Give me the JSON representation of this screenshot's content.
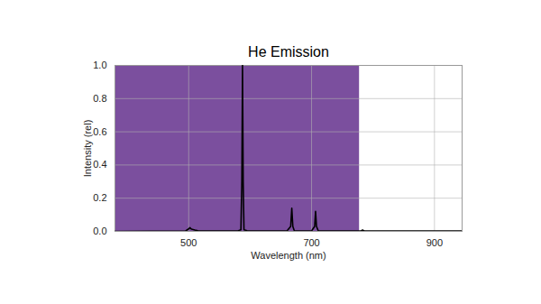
{
  "chart_data": {
    "type": "line",
    "title": "He Emission",
    "x_label": "Wavelength (nm)",
    "y_label": "Intensity (rel)",
    "xlim": [
      380,
      945
    ],
    "ylim": [
      0,
      1
    ],
    "xticks": [
      500,
      700,
      900
    ],
    "yticks": [
      {
        "value": 0,
        "label": "0.0"
      },
      {
        "value": 0.2,
        "label": "0.2"
      },
      {
        "value": 0.4,
        "label": "0.4"
      },
      {
        "value": 0.6,
        "label": "0.6"
      },
      {
        "value": 0.8,
        "label": "0.8"
      },
      {
        "value": 1,
        "label": "1.0"
      }
    ],
    "grid": true,
    "color": "#000000",
    "x": [
      380,
      495,
      500,
      502,
      504,
      506,
      510,
      515,
      520,
      580,
      585,
      586.5,
      587.6,
      588.7,
      590,
      595,
      660,
      666,
      667.8,
      669.5,
      672,
      700,
      705,
      706.5,
      708,
      711,
      780,
      783,
      786,
      945
    ],
    "values": [
      0,
      0.003,
      0.015,
      0.022,
      0.015,
      0.012,
      0.008,
      0.004,
      0.003,
      0.003,
      0.01,
      0.3,
      1.0,
      0.3,
      0.01,
      0.004,
      0.003,
      0.03,
      0.14,
      0.03,
      0.003,
      0.003,
      0.03,
      0.12,
      0.03,
      0.003,
      0.002,
      0.008,
      0.002,
      0.002
    ],
    "spectrum_band": {
      "x": [
        380,
        405,
        425,
        445,
        460,
        475,
        485,
        500,
        530,
        550,
        565,
        575,
        585,
        595,
        610,
        625,
        700,
        740,
        760,
        778
      ],
      "colors": [
        "#7b4f9e",
        "#6a48a0",
        "#4b4ea6",
        "#3957a8",
        "#3a74bb",
        "#43a6dc",
        "#4bbce6",
        "#4db848",
        "#5cb947",
        "#8cc63f",
        "#c8d62b",
        "#f0e81a",
        "#f5d31a",
        "#f6a21c",
        "#ef5a28",
        "#e8262a",
        "#e3252a",
        "#c8232a",
        "#9a1d20",
        "#6b1515"
      ]
    }
  }
}
